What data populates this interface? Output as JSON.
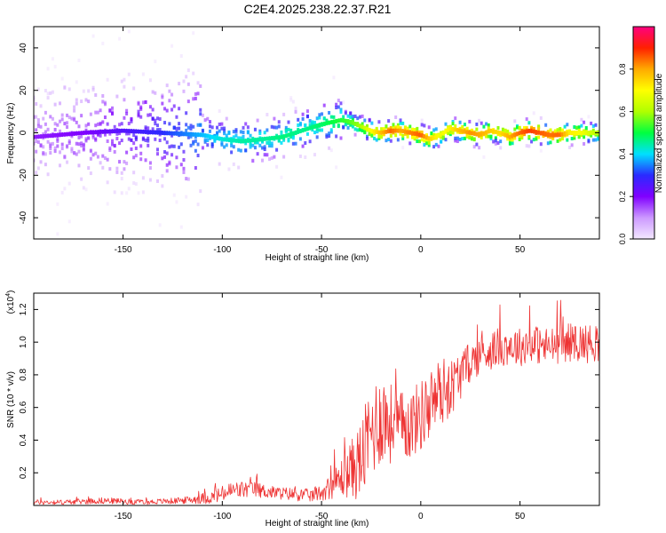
{
  "title": "C2E4.2025.238.22.37.R21",
  "colors": {
    "snr_line": "#ee3333",
    "axis": "#000000"
  },
  "chart_data": [
    {
      "type": "heatmap",
      "name": "spectrogram",
      "xlabel": "Height of straight line (km)",
      "ylabel": "Frequency (Hz)",
      "xlim": [
        -195,
        90
      ],
      "ylim": [
        -50,
        50
      ],
      "xticks": [
        -150,
        -100,
        -50,
        0,
        50
      ],
      "xtick_labels": [
        "-150",
        "-100",
        "-50",
        "0",
        "50"
      ],
      "yticks": [
        -40,
        -20,
        0,
        20,
        40
      ],
      "ytick_labels": [
        "-40",
        "-20",
        "0",
        "20",
        "40"
      ],
      "ridge": {
        "x": [
          -195,
          -170,
          -150,
          -130,
          -110,
          -100,
          -90,
          -80,
          -70,
          -60,
          -50,
          -40,
          -35,
          -30,
          -25,
          -20,
          -15,
          -10,
          -5,
          0,
          5,
          10,
          15,
          20,
          25,
          30,
          35,
          40,
          45,
          50,
          55,
          60,
          65,
          70,
          75,
          80,
          85,
          90
        ],
        "y": [
          -2,
          0,
          1,
          0,
          -1,
          -3,
          -4,
          -3,
          -2,
          1,
          4,
          6,
          5,
          3,
          1,
          0,
          1,
          1,
          0,
          -1,
          -3,
          -1,
          2,
          1,
          0,
          -1,
          1,
          0,
          -2,
          0,
          1,
          0,
          -1,
          -1,
          0,
          0,
          0,
          0
        ],
        "amplitude": [
          0.18,
          0.2,
          0.25,
          0.3,
          0.38,
          0.42,
          0.45,
          0.45,
          0.47,
          0.46,
          0.48,
          0.52,
          0.55,
          0.6,
          0.7,
          0.78,
          0.85,
          0.8,
          0.83,
          0.86,
          0.75,
          0.68,
          0.72,
          0.78,
          0.82,
          0.8,
          0.76,
          0.74,
          0.8,
          0.85,
          0.88,
          0.86,
          0.84,
          0.85,
          0.72,
          0.7,
          0.65,
          0.6
        ]
      },
      "colorbar": {
        "label": "Normalized spectral amplitude",
        "range": [
          0,
          1
        ],
        "ticks": [
          0,
          0.2,
          0.4,
          0.6,
          0.8
        ],
        "tick_labels": [
          "0.0",
          "0.2",
          "0.4",
          "0.6",
          "0.8"
        ],
        "stops": [
          "#f3e8ff",
          "#cc99ff",
          "#8000ff",
          "#2a2aff",
          "#00e0ff",
          "#00ff40",
          "#b0ff00",
          "#ffff00",
          "#ffaa00",
          "#ff2000",
          "#ff0080"
        ]
      }
    },
    {
      "type": "line",
      "name": "snr",
      "xlabel": "Height of straight line (km)",
      "ylabel": "SNR (10 * v/v)",
      "yscale_label": "(x10",
      "yscale_exponent": "4",
      "yscale_suffix": ")",
      "xlim": [
        -195,
        90
      ],
      "ylim": [
        0,
        1.3
      ],
      "xticks": [
        -150,
        -100,
        -50,
        0,
        50
      ],
      "xtick_labels": [
        "-150",
        "-100",
        "-50",
        "0",
        "50"
      ],
      "yticks": [
        0.2,
        0.4,
        0.6,
        0.8,
        1.0,
        1.2
      ],
      "ytick_labels": [
        "0.2",
        "0.4",
        "0.6",
        "0.8",
        "1.0",
        "1.2"
      ],
      "series": [
        {
          "name": "SNR",
          "x": [
            -195,
            -180,
            -160,
            -140,
            -120,
            -105,
            -95,
            -85,
            -75,
            -65,
            -55,
            -50,
            -45,
            -40,
            -35,
            -30,
            -25,
            -20,
            -15,
            -10,
            -5,
            0,
            5,
            10,
            15,
            20,
            25,
            30,
            35,
            40,
            45,
            50,
            55,
            60,
            65,
            70,
            75,
            80,
            85,
            90
          ],
          "y": [
            0.02,
            0.02,
            0.03,
            0.02,
            0.03,
            0.05,
            0.09,
            0.1,
            0.08,
            0.07,
            0.06,
            0.08,
            0.12,
            0.17,
            0.22,
            0.28,
            0.45,
            0.55,
            0.5,
            0.48,
            0.5,
            0.55,
            0.62,
            0.7,
            0.72,
            0.8,
            0.88,
            0.92,
            0.95,
            0.97,
            0.98,
            0.97,
            1.0,
            0.98,
            0.97,
            0.99,
            1.0,
            1.0,
            0.99,
            1.0
          ],
          "noise": [
            0.015,
            0.015,
            0.02,
            0.015,
            0.02,
            0.04,
            0.06,
            0.05,
            0.04,
            0.04,
            0.04,
            0.05,
            0.08,
            0.12,
            0.18,
            0.25,
            0.3,
            0.3,
            0.25,
            0.22,
            0.22,
            0.22,
            0.22,
            0.22,
            0.18,
            0.15,
            0.12,
            0.12,
            0.12,
            0.12,
            0.12,
            0.12,
            0.12,
            0.12,
            0.12,
            0.12,
            0.12,
            0.12,
            0.12,
            0.12
          ]
        }
      ]
    }
  ]
}
